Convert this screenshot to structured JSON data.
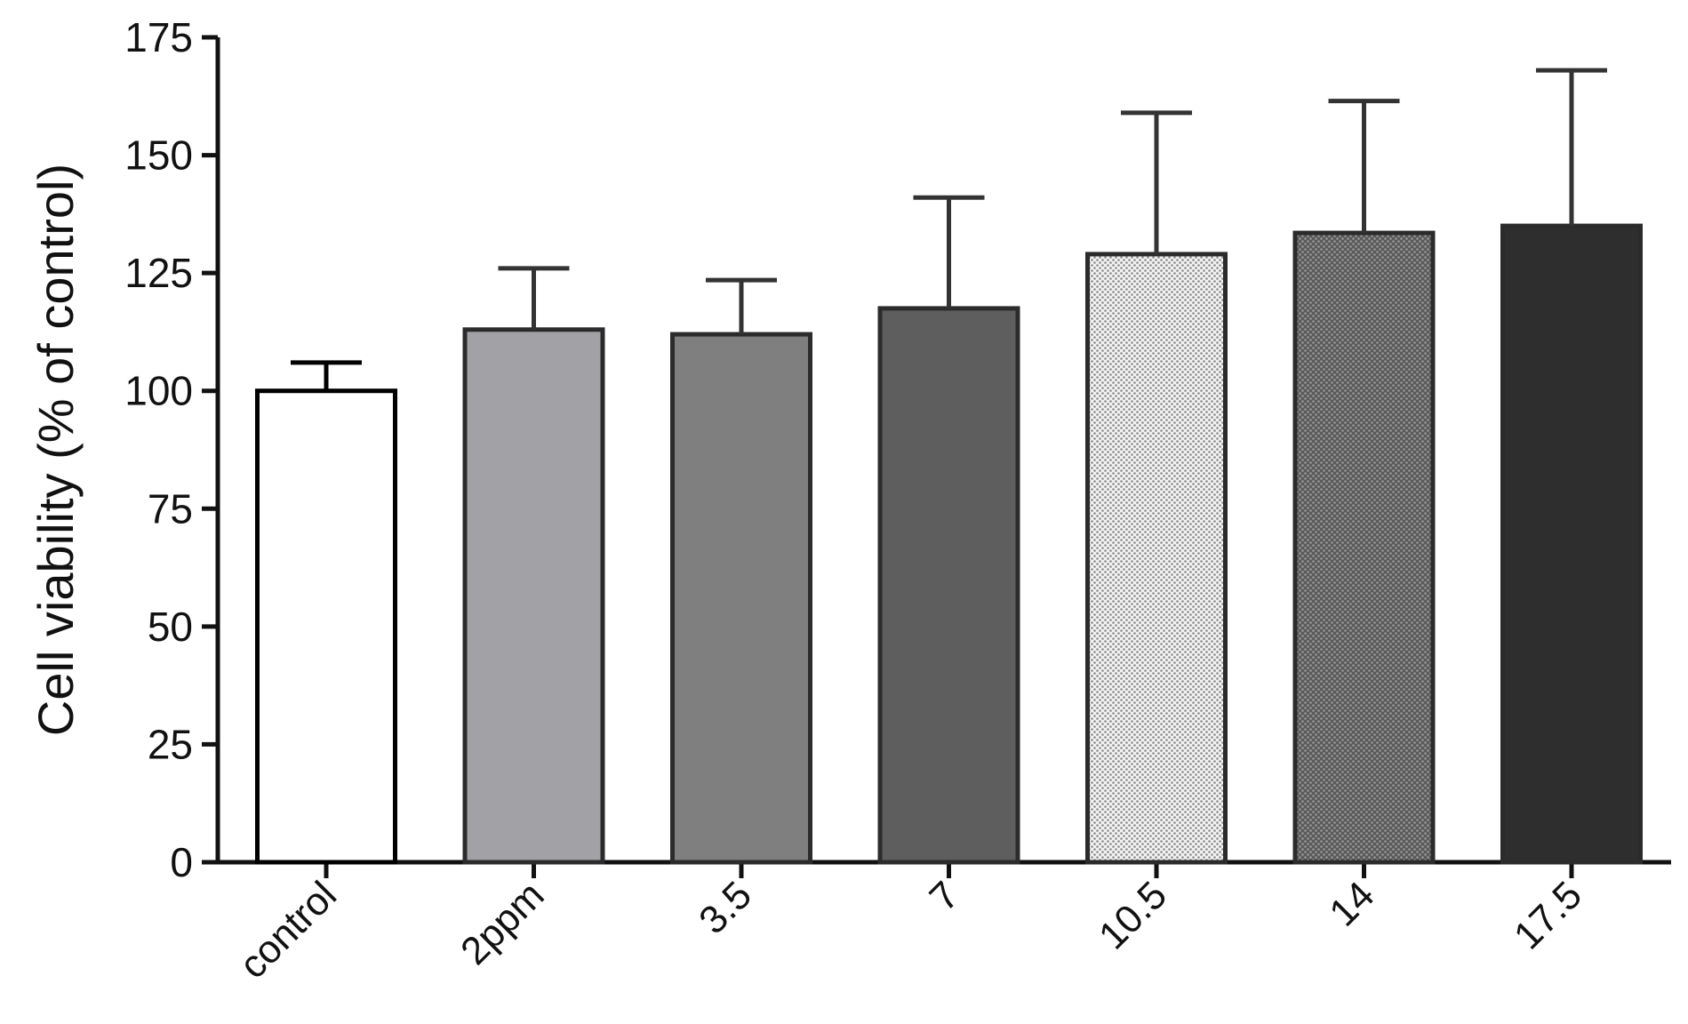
{
  "chart_data": {
    "type": "bar",
    "title": "",
    "xlabel": "",
    "ylabel": "Cell viability (% of control)",
    "ylim": [
      0,
      175
    ],
    "yticks": [
      0,
      25,
      50,
      75,
      100,
      125,
      150,
      175
    ],
    "categories": [
      "control",
      "2ppm",
      "3.5",
      "7",
      "10.5",
      "14",
      "17.5"
    ],
    "values": [
      100,
      113,
      112,
      117.5,
      129,
      133.5,
      135
    ],
    "errors": [
      6,
      13,
      11.5,
      23.5,
      30,
      28,
      33
    ],
    "grid": false,
    "legend": "none",
    "bar_styles": [
      {
        "fill": "#ffffff",
        "pattern": "none"
      },
      {
        "fill": "#a2a1a6",
        "pattern": "none"
      },
      {
        "fill": "#7f7f7f",
        "pattern": "none"
      },
      {
        "fill": "#5e5e5e",
        "pattern": "none"
      },
      {
        "fill": "#d6d6d6",
        "pattern": "dots-light"
      },
      {
        "fill": "#6e6e6e",
        "pattern": "dots-dark"
      },
      {
        "fill": "#2e2e2e",
        "pattern": "none"
      }
    ],
    "colors": {
      "axis": "#111111",
      "bar_edge": "#2b2b2b",
      "control_edge": "#000000",
      "error_bar": "#333333"
    }
  }
}
